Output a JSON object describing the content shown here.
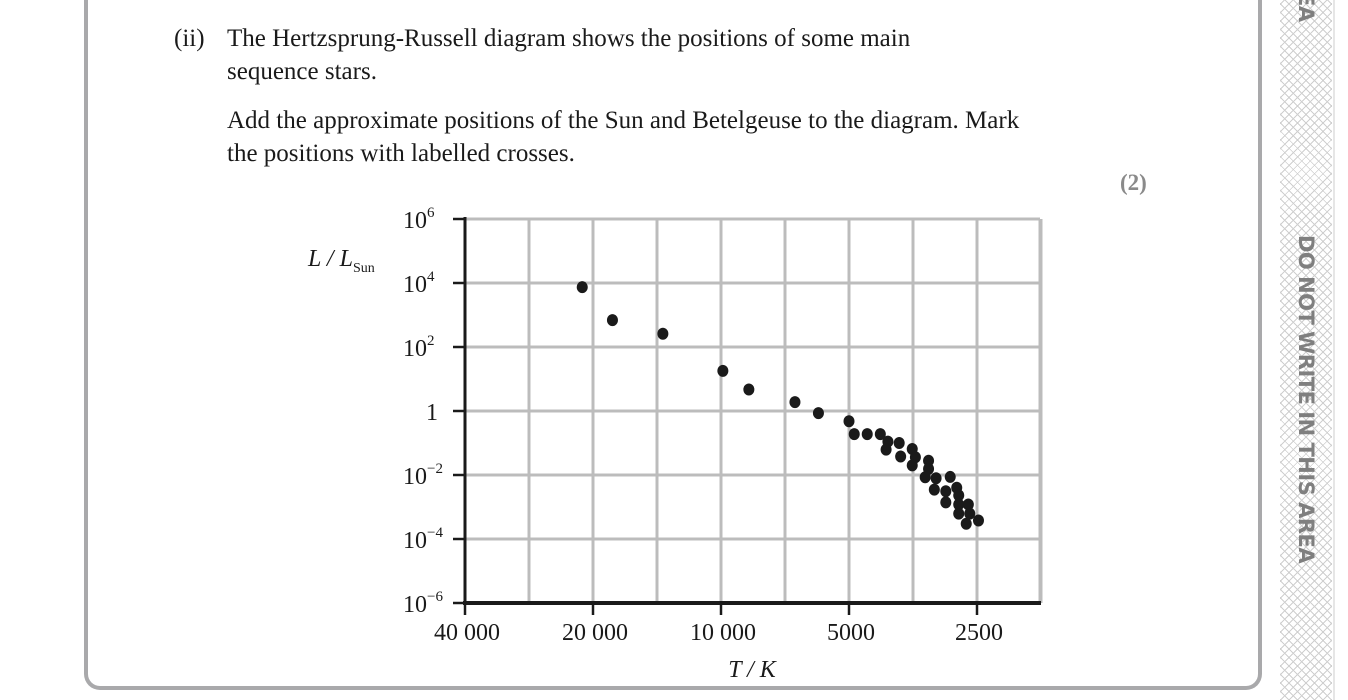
{
  "question": {
    "number": "(ii)",
    "line1": "The Hertzsprung-Russell diagram shows the positions of some main",
    "line2": "sequence stars.",
    "line3": "Add the approximate positions of the Sun and Betelgeuse to the diagram. Mark",
    "line4": "the positions with labelled crosses.",
    "marks": "(2)"
  },
  "margin": {
    "warning": "DO NOT WRITE IN THIS AREA",
    "warning_fragment": "EA"
  },
  "chart_data": {
    "type": "scatter",
    "title": "",
    "xlabel": "T / K",
    "ylabel": "L / L",
    "ylabel_subscript": "Sun",
    "x_scale": "log (reversed)",
    "y_scale": "log",
    "xlim": [
      40000,
      1800
    ],
    "ylim": [
      1e-06,
      1000000.0
    ],
    "grid": true,
    "x_ticks": [
      {
        "value": 40000,
        "label": "40 000"
      },
      {
        "value": 20000,
        "label": "20 000"
      },
      {
        "value": 10000,
        "label": "10 000"
      },
      {
        "value": 5000,
        "label": "5000"
      },
      {
        "value": 2500,
        "label": "2500"
      }
    ],
    "y_ticks": [
      {
        "value": 1000000.0,
        "base": "10",
        "exp": "6"
      },
      {
        "value": 10000.0,
        "base": "10",
        "exp": "4"
      },
      {
        "value": 100.0,
        "base": "10",
        "exp": "2"
      },
      {
        "value": 1,
        "base": "1",
        "exp": ""
      },
      {
        "value": 0.01,
        "base": "10",
        "exp": "−2"
      },
      {
        "value": 0.0001,
        "base": "10",
        "exp": "−4"
      },
      {
        "value": 1e-06,
        "base": "10",
        "exp": "−6"
      }
    ],
    "points": [
      {
        "T": 21200,
        "L": 7400
      },
      {
        "T": 18000,
        "L": 690
      },
      {
        "T": 13700,
        "L": 260
      },
      {
        "T": 9900,
        "L": 18
      },
      {
        "T": 8600,
        "L": 4.7
      },
      {
        "T": 6700,
        "L": 1.9
      },
      {
        "T": 5900,
        "L": 0.86
      },
      {
        "T": 5000,
        "L": 0.48
      },
      {
        "T": 4860,
        "L": 0.19
      },
      {
        "T": 4530,
        "L": 0.19
      },
      {
        "T": 4220,
        "L": 0.19
      },
      {
        "T": 4050,
        "L": 0.11
      },
      {
        "T": 4090,
        "L": 0.062
      },
      {
        "T": 3810,
        "L": 0.1
      },
      {
        "T": 3780,
        "L": 0.038
      },
      {
        "T": 3550,
        "L": 0.065
      },
      {
        "T": 3490,
        "L": 0.036
      },
      {
        "T": 3550,
        "L": 0.02
      },
      {
        "T": 3250,
        "L": 0.028
      },
      {
        "T": 3250,
        "L": 0.0155
      },
      {
        "T": 3310,
        "L": 0.0085
      },
      {
        "T": 3120,
        "L": 0.0079
      },
      {
        "T": 3150,
        "L": 0.0035
      },
      {
        "T": 2890,
        "L": 0.0087
      },
      {
        "T": 2790,
        "L": 0.004
      },
      {
        "T": 2960,
        "L": 0.0031
      },
      {
        "T": 2760,
        "L": 0.0023
      },
      {
        "T": 2960,
        "L": 0.0014
      },
      {
        "T": 2760,
        "L": 0.0012
      },
      {
        "T": 2620,
        "L": 0.0012
      },
      {
        "T": 2760,
        "L": 0.00062
      },
      {
        "T": 2600,
        "L": 0.00062
      },
      {
        "T": 2650,
        "L": 0.0003
      },
      {
        "T": 2480,
        "L": 0.00038
      }
    ]
  },
  "colors": {
    "grid": "#bcbcbc",
    "axis": "#1a1a1a",
    "point": "#1a1a1a",
    "border": "#a9a9ab",
    "margin_text": "#7f7f7f"
  }
}
